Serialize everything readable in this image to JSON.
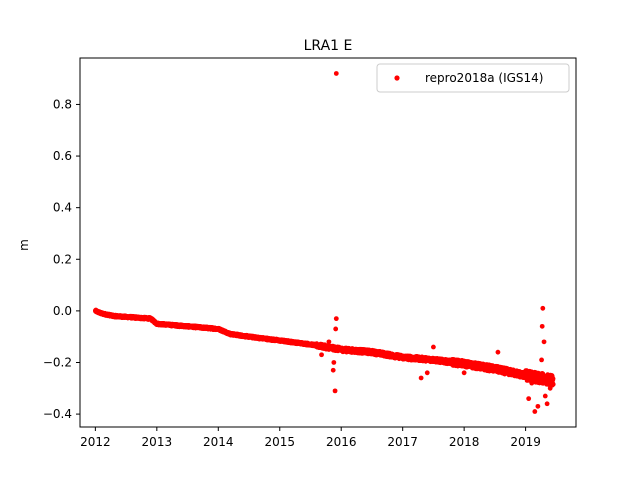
{
  "chart_data": {
    "type": "scatter",
    "title": "LRA1 E",
    "xlabel": "",
    "ylabel": "m",
    "xlim": [
      2011.75,
      2019.82
    ],
    "ylim": [
      -0.45,
      0.98
    ],
    "xticks": [
      2012,
      2013,
      2014,
      2015,
      2016,
      2017,
      2018,
      2019
    ],
    "yticks": [
      -0.4,
      -0.2,
      0.0,
      0.2,
      0.4,
      0.6,
      0.8
    ],
    "ytick_labels": [
      "−0.4",
      "−0.2",
      "0.0",
      "0.2",
      "0.4",
      "0.6",
      "0.8"
    ],
    "grid": false,
    "legend_position": "top-right",
    "series": [
      {
        "name": "repro2018a (IGS14)",
        "color": "#ff0000",
        "marker": "circle",
        "trend": [
          [
            2012.0,
            0.0
          ],
          [
            2012.1,
            -0.01
          ],
          [
            2012.3,
            -0.02
          ],
          [
            2012.6,
            -0.025
          ],
          [
            2012.9,
            -0.03
          ],
          [
            2013.0,
            -0.05
          ],
          [
            2013.5,
            -0.06
          ],
          [
            2014.0,
            -0.07
          ],
          [
            2014.2,
            -0.09
          ],
          [
            2014.5,
            -0.1
          ],
          [
            2015.0,
            -0.115
          ],
          [
            2015.5,
            -0.13
          ],
          [
            2016.0,
            -0.15
          ],
          [
            2016.5,
            -0.16
          ],
          [
            2017.0,
            -0.18
          ],
          [
            2017.5,
            -0.19
          ],
          [
            2018.0,
            -0.205
          ],
          [
            2018.5,
            -0.225
          ],
          [
            2019.0,
            -0.25
          ],
          [
            2019.45,
            -0.27
          ]
        ],
        "outliers": [
          [
            2015.92,
            0.92
          ],
          [
            2015.92,
            -0.03
          ],
          [
            2015.91,
            -0.07
          ],
          [
            2015.88,
            -0.2
          ],
          [
            2015.87,
            -0.23
          ],
          [
            2015.9,
            -0.31
          ],
          [
            2015.68,
            -0.17
          ],
          [
            2015.8,
            -0.12
          ],
          [
            2017.3,
            -0.26
          ],
          [
            2017.4,
            -0.24
          ],
          [
            2017.5,
            -0.14
          ],
          [
            2018.0,
            -0.24
          ],
          [
            2018.55,
            -0.16
          ],
          [
            2018.4,
            -0.22
          ],
          [
            2019.28,
            0.01
          ],
          [
            2019.27,
            -0.06
          ],
          [
            2019.3,
            -0.12
          ],
          [
            2019.26,
            -0.19
          ],
          [
            2019.35,
            -0.36
          ],
          [
            2019.32,
            -0.33
          ],
          [
            2019.15,
            -0.39
          ],
          [
            2019.2,
            -0.37
          ],
          [
            2019.05,
            -0.34
          ],
          [
            2019.4,
            -0.3
          ],
          [
            2019.1,
            -0.28
          ]
        ]
      }
    ]
  }
}
